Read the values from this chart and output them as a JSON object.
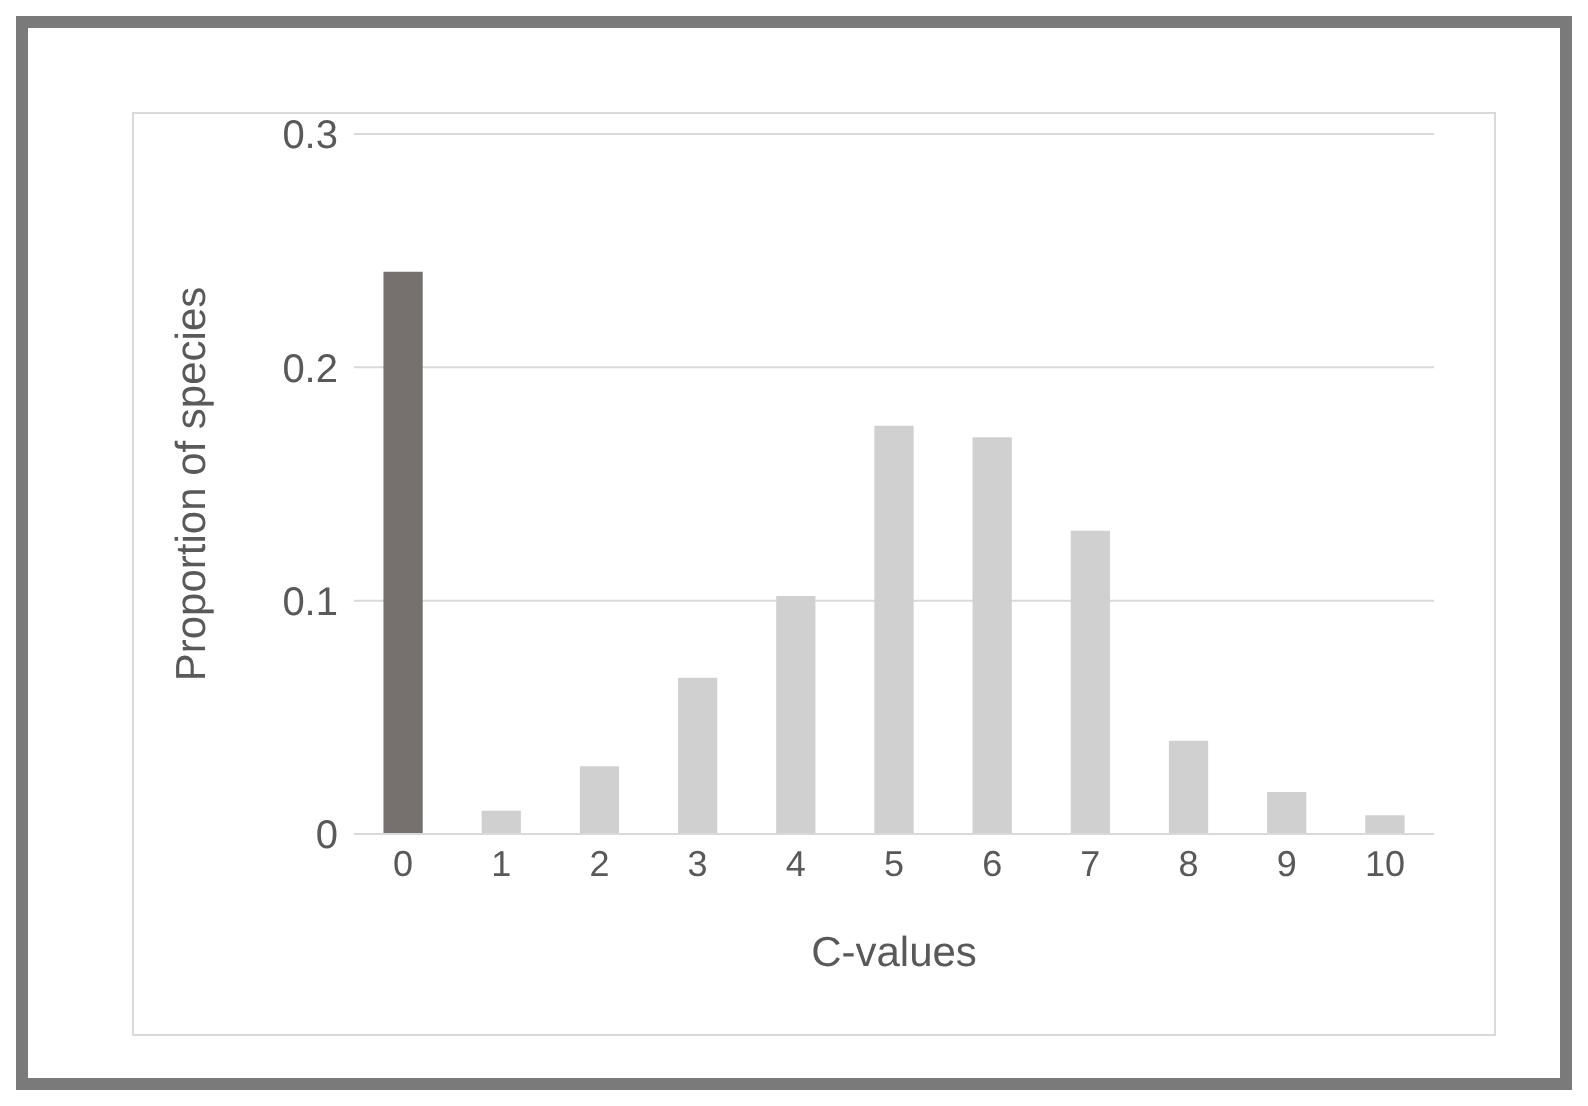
{
  "chart_data": {
    "type": "bar",
    "xlabel": "C-values",
    "ylabel": "Proportion of species",
    "categories": [
      "0",
      "1",
      "2",
      "3",
      "4",
      "5",
      "6",
      "7",
      "8",
      "9",
      "10"
    ],
    "values": [
      0.241,
      0.01,
      0.029,
      0.067,
      0.102,
      0.175,
      0.17,
      0.13,
      0.04,
      0.018,
      0.008
    ],
    "colors": [
      "#76706f",
      "#d0d0d0",
      "#d0d0d0",
      "#d0d0d0",
      "#d0d0d0",
      "#d0d0d0",
      "#d0d0d0",
      "#d0d0d0",
      "#d0d0d0",
      "#d0d0d0",
      "#d0d0d0"
    ],
    "ylim": [
      0,
      0.3
    ],
    "yticks": [
      0,
      0.1,
      0.2,
      0.3
    ],
    "grid": "y"
  }
}
